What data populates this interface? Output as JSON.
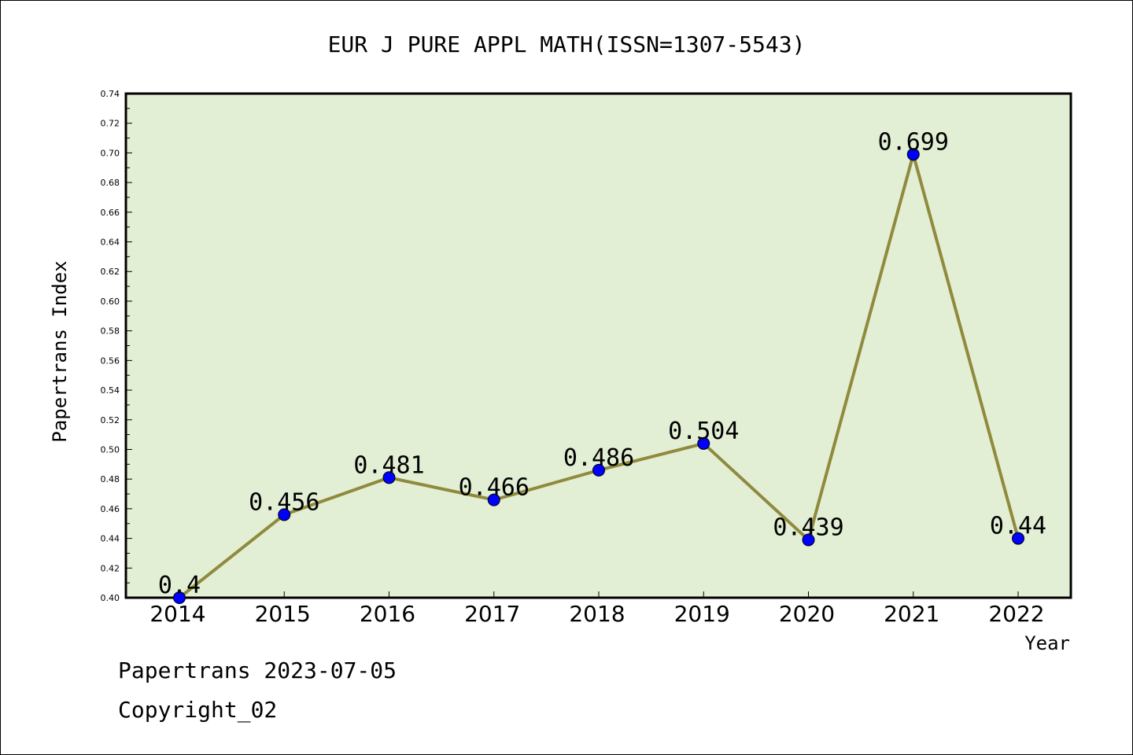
{
  "chart_data": {
    "type": "line",
    "title": "EUR J PURE APPL MATH(ISSN=1307-5543)",
    "xlabel": "Year",
    "ylabel": "Papertrans Index",
    "categories": [
      "2014",
      "2015",
      "2016",
      "2017",
      "2018",
      "2019",
      "2020",
      "2021",
      "2022"
    ],
    "values": [
      0.4,
      0.456,
      0.481,
      0.466,
      0.486,
      0.504,
      0.439,
      0.699,
      0.44
    ],
    "data_labels": [
      "0.4",
      "0.456",
      "0.481",
      "0.466",
      "0.486",
      "0.504",
      "0.439",
      "0.699",
      "0.44"
    ],
    "ylim": [
      0.4,
      0.74
    ],
    "yticks": [
      "0.40",
      "0.42",
      "0.44",
      "0.46",
      "0.48",
      "0.50",
      "0.52",
      "0.54",
      "0.56",
      "0.58",
      "0.60",
      "0.62",
      "0.64",
      "0.66",
      "0.68",
      "0.70",
      "0.72",
      "0.74"
    ],
    "grid": false,
    "legend": "none",
    "colors": {
      "plot_background": "#e2efd5",
      "line": "#8f8a3d",
      "marker": "#0000ff",
      "axis": "#000000"
    }
  },
  "footer": {
    "line1": "Papertrans 2023-07-05",
    "line2": "Copyright_02"
  }
}
